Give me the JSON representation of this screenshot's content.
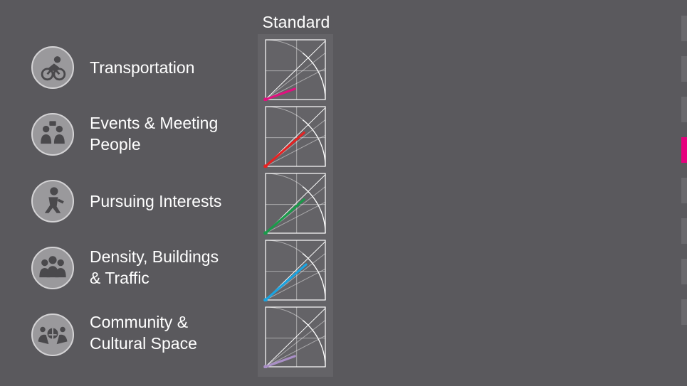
{
  "column_title": "Standard",
  "rows": [
    {
      "label": "Transportation",
      "icon": "cyclist-icon",
      "color": "#e0117f",
      "level": 0.55
    },
    {
      "label": "Events & Meeting\nPeople",
      "icon": "meeting-people-icon",
      "color": "#e52222",
      "level": 0.9
    },
    {
      "label": "Pursuing Interests",
      "icon": "runner-icon",
      "color": "#1a9a4a",
      "level": 0.9
    },
    {
      "label": "Density, Buildings\n& Traffic",
      "icon": "crowd-icon",
      "color": "#1aa3e0",
      "level": 0.95
    },
    {
      "label": "Community &\nCultural Space",
      "icon": "community-icon",
      "color": "#a98fc6",
      "level": 0.55
    }
  ],
  "pager": {
    "count": 8,
    "active_index": 3,
    "active_color": "#e6007e"
  }
}
